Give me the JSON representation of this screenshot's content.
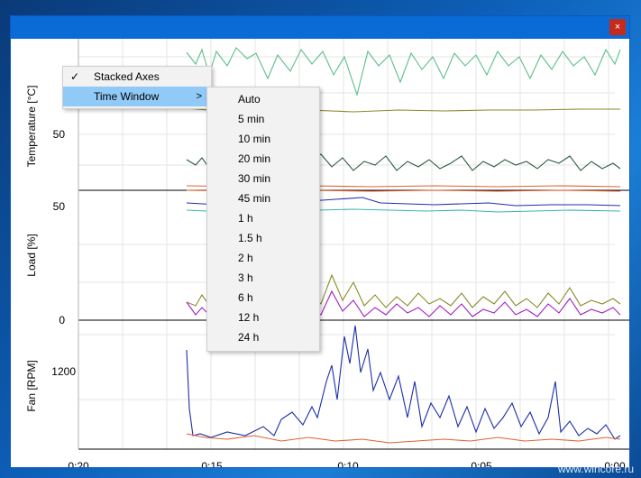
{
  "window": {
    "close_label": "×"
  },
  "axes": {
    "temperature_label": "Temperature [°C]",
    "load_label": "Load [%]",
    "fan_label": "Fan [RPM]",
    "temp_tick": "50",
    "load_ticks": [
      "50",
      "0"
    ],
    "fan_tick": "1200",
    "x_ticks": [
      "0:20",
      "0:15",
      "0:10",
      "0:05",
      "0:00"
    ]
  },
  "context_menu": {
    "items": [
      {
        "label": "Stacked Axes",
        "checked": true
      },
      {
        "label": "Time Window",
        "has_submenu": true
      }
    ],
    "check_glyph": "✓",
    "submenu_arrow": ">"
  },
  "time_window_submenu": [
    "Auto",
    "5 min",
    "10 min",
    "20 min",
    "30 min",
    "45 min",
    "1 h",
    "1.5 h",
    "2 h",
    "3 h",
    "6 h",
    "12 h",
    "24 h"
  ],
  "watermark": "www.wincore.ru",
  "colors": {
    "titlebar": "#0a6ad6",
    "close": "#c42b1c",
    "menu_highlight": "#91c9f7",
    "series_green": "#5cbf8a",
    "series_dark": "#2e5b3f",
    "series_olive": "#8a8a2a",
    "series_navy": "#1c2fa8",
    "series_purple": "#a020c0",
    "series_orange": "#e06030",
    "series_teal": "#3cb4b4"
  }
}
